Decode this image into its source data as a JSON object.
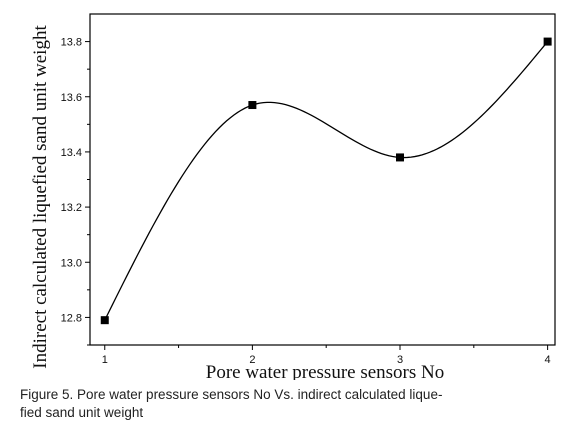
{
  "chart_data": {
    "type": "line",
    "x": [
      1,
      2,
      3,
      4
    ],
    "series": [
      {
        "values": [
          12.79,
          13.57,
          13.38,
          13.8
        ]
      }
    ],
    "xticks": [
      "1",
      "2",
      "3",
      "4"
    ],
    "yticks": [
      "12.8",
      "13.0",
      "13.2",
      "13.4",
      "13.6",
      "13.8"
    ],
    "xlim": [
      0.9,
      4.05
    ],
    "ylim": [
      12.7,
      13.9
    ],
    "xlabel": "Pore water pressure sensors No",
    "ylabel": "Indirect calculated liquefied sand unit weight",
    "marker": "square",
    "smooth": true,
    "grid": false
  },
  "caption": {
    "line1": "Figure 5. Pore water pressure sensors No Vs. indirect calculated lique-",
    "line2": "fied sand unit weight"
  }
}
